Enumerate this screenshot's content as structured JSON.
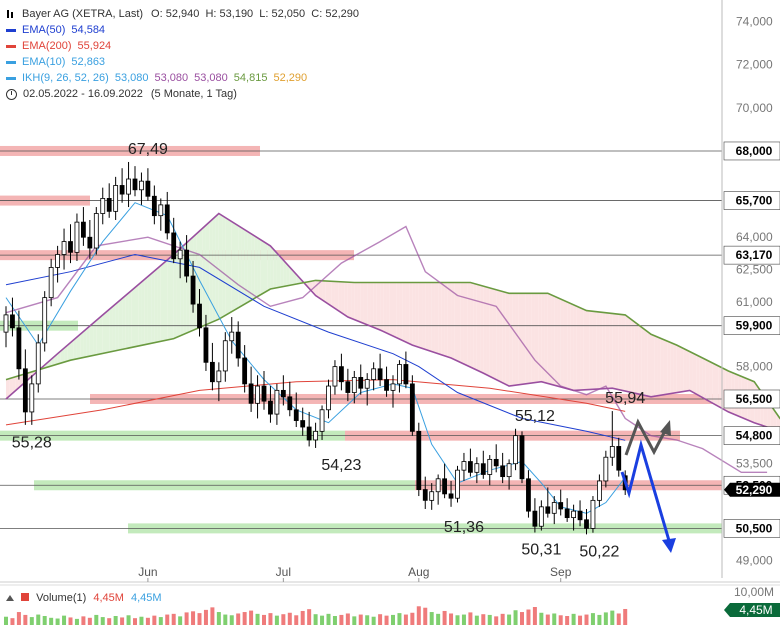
{
  "header": {
    "symbol": "Bayer AG (XETRA, Last)",
    "ohlc": "O: 52,940  H: 53,190  L: 52,050  C: 52,290",
    "period": "02.05.2022 - 16.09.2022",
    "period_note": "(5 Monate, 1 Tag)"
  },
  "indicators": [
    {
      "label": "EMA(50)",
      "value": "54,584",
      "color": "#1f3fd0"
    },
    {
      "label": "EMA(200)",
      "value": "55,924",
      "color": "#e0443a"
    },
    {
      "label": "EMA(10)",
      "value": "52,863",
      "color": "#3aa0e0"
    }
  ],
  "ichimoku": {
    "label": "IKH(9, 26, 52, 26)",
    "values": [
      {
        "v": "53,080",
        "color": "#3aa0e0"
      },
      {
        "v": "53,080",
        "color": "#9a4fa0"
      },
      {
        "v": "53,080",
        "color": "#9a4fa0"
      },
      {
        "v": "54,815",
        "color": "#6a9a40"
      },
      {
        "v": "52,290",
        "color": "#e0a030"
      }
    ]
  },
  "volume": {
    "label": "Volume(1)",
    "value1": "4,45M",
    "value2": "4,45M",
    "axis_top": "10,00M",
    "axis_badge": "4,45M"
  },
  "colors": {
    "up": "#ffffff",
    "down": "#000000",
    "resistance": "#f2a8a8",
    "support": "#b8e6b0",
    "cloud_bull": "#e2f3dc",
    "cloud_bear": "#fbe3e3",
    "arrow_grey": "#555555",
    "arrow_blue": "#1a3fe0"
  },
  "chart_data": {
    "type": "candlestick",
    "ylim": [
      48.2,
      75.0
    ],
    "y_ticks": [
      "74,000",
      "72,000",
      "70,000",
      "64,000",
      "62,500",
      "61,000",
      "58,000",
      "53,500",
      "49,000"
    ],
    "price_levels": [
      {
        "label": "68,000",
        "value": 68.0,
        "zone": "resistance"
      },
      {
        "label": "65,700",
        "value": 65.7,
        "zone": "resistance"
      },
      {
        "label": "63,170",
        "value": 63.17,
        "zone": "resistance"
      },
      {
        "label": "59,900",
        "value": 59.9,
        "zone": "support"
      },
      {
        "label": "56,500",
        "value": 56.5,
        "zone": "resistance"
      },
      {
        "label": "54,800",
        "value": 54.8,
        "zone": "mixed"
      },
      {
        "label": "52,500",
        "value": 52.5,
        "zone": "mixed"
      },
      {
        "label": "50,500",
        "value": 50.5,
        "zone": "support"
      }
    ],
    "current_price": {
      "label": "52,290",
      "value": 52.29
    },
    "x_labels": [
      {
        "label": "Jun",
        "index": 22
      },
      {
        "label": "Jul",
        "index": 43
      },
      {
        "label": "Aug",
        "index": 64
      },
      {
        "label": "Sep",
        "index": 86
      }
    ],
    "annotations": [
      {
        "text": "67,49",
        "index": 22,
        "value": 67.49,
        "pos": "above"
      },
      {
        "text": "55,28",
        "index": 4,
        "value": 55.28,
        "pos": "below"
      },
      {
        "text": "54,23",
        "index": 52,
        "value": 54.23,
        "pos": "below"
      },
      {
        "text": "55,12",
        "index": 82,
        "value": 55.12,
        "pos": "above"
      },
      {
        "text": "55,94",
        "index": 96,
        "value": 55.94,
        "pos": "above"
      },
      {
        "text": "51,36",
        "index": 71,
        "value": 51.36,
        "pos": "below"
      },
      {
        "text": "50,31",
        "index": 83,
        "value": 50.31,
        "pos": "below"
      },
      {
        "text": "50,22",
        "index": 92,
        "value": 50.22,
        "pos": "below"
      }
    ],
    "candles": [
      [
        59.6,
        60.8,
        58.9,
        60.4
      ],
      [
        60.4,
        61.2,
        59.4,
        59.8
      ],
      [
        59.8,
        60.6,
        57.4,
        57.9
      ],
      [
        57.9,
        58.8,
        55.3,
        55.9
      ],
      [
        55.9,
        57.6,
        55.3,
        57.2
      ],
      [
        57.2,
        59.5,
        56.8,
        59.1
      ],
      [
        59.1,
        61.5,
        58.7,
        61.2
      ],
      [
        61.2,
        63.0,
        60.8,
        62.6
      ],
      [
        62.6,
        63.6,
        61.9,
        63.2
      ],
      [
        63.2,
        64.4,
        62.5,
        63.8
      ],
      [
        63.8,
        64.6,
        62.8,
        63.3
      ],
      [
        63.3,
        65.1,
        62.9,
        64.7
      ],
      [
        64.7,
        65.4,
        63.6,
        64.0
      ],
      [
        64.0,
        64.8,
        63.0,
        63.5
      ],
      [
        63.5,
        65.4,
        63.2,
        65.1
      ],
      [
        65.1,
        66.3,
        64.6,
        65.8
      ],
      [
        65.8,
        66.5,
        64.9,
        65.2
      ],
      [
        65.2,
        66.8,
        64.8,
        66.4
      ],
      [
        66.4,
        67.2,
        65.6,
        66.0
      ],
      [
        66.0,
        67.49,
        65.4,
        66.7
      ],
      [
        66.7,
        67.3,
        65.9,
        66.2
      ],
      [
        66.2,
        67.0,
        65.5,
        66.6
      ],
      [
        66.6,
        67.2,
        65.7,
        65.9
      ],
      [
        65.9,
        66.4,
        64.6,
        65.0
      ],
      [
        65.0,
        65.8,
        64.3,
        65.5
      ],
      [
        65.5,
        66.1,
        63.9,
        64.2
      ],
      [
        64.2,
        64.9,
        62.8,
        63.0
      ],
      [
        63.0,
        63.8,
        62.1,
        63.4
      ],
      [
        63.4,
        64.1,
        61.9,
        62.2
      ],
      [
        62.2,
        62.9,
        60.5,
        60.9
      ],
      [
        60.9,
        61.6,
        59.4,
        59.8
      ],
      [
        59.8,
        60.4,
        57.8,
        58.2
      ],
      [
        58.2,
        59.1,
        56.9,
        57.3
      ],
      [
        57.3,
        58.2,
        56.4,
        57.8
      ],
      [
        57.8,
        59.6,
        57.3,
        59.2
      ],
      [
        59.2,
        60.3,
        58.6,
        59.6
      ],
      [
        59.6,
        60.1,
        58.0,
        58.4
      ],
      [
        58.4,
        59.0,
        56.8,
        57.2
      ],
      [
        57.2,
        58.0,
        55.9,
        56.3
      ],
      [
        56.3,
        57.6,
        55.6,
        57.1
      ],
      [
        57.1,
        57.8,
        56.0,
        56.4
      ],
      [
        56.4,
        57.1,
        55.4,
        55.8
      ],
      [
        55.8,
        57.2,
        55.3,
        56.9
      ],
      [
        56.9,
        57.6,
        56.2,
        56.6
      ],
      [
        56.6,
        57.3,
        55.7,
        56.0
      ],
      [
        56.0,
        56.8,
        55.2,
        55.5
      ],
      [
        55.5,
        56.1,
        54.8,
        55.2
      ],
      [
        55.2,
        55.9,
        54.3,
        54.6
      ],
      [
        54.6,
        55.4,
        54.23,
        55.0
      ],
      [
        55.0,
        56.2,
        54.6,
        56.0
      ],
      [
        56.0,
        57.4,
        55.6,
        57.1
      ],
      [
        57.1,
        58.3,
        56.7,
        58.0
      ],
      [
        58.0,
        58.6,
        56.9,
        57.3
      ],
      [
        57.3,
        57.9,
        56.4,
        56.8
      ],
      [
        56.8,
        57.8,
        56.3,
        57.5
      ],
      [
        57.5,
        58.1,
        56.7,
        57.0
      ],
      [
        57.0,
        57.7,
        56.2,
        57.4
      ],
      [
        57.4,
        58.2,
        56.9,
        57.9
      ],
      [
        57.9,
        58.6,
        57.1,
        57.4
      ],
      [
        57.4,
        58.0,
        56.6,
        56.9
      ],
      [
        56.9,
        57.6,
        56.1,
        57.2
      ],
      [
        57.2,
        58.3,
        56.8,
        58.1
      ],
      [
        58.1,
        58.7,
        57.0,
        57.2
      ],
      [
        57.2,
        57.6,
        54.8,
        55.0
      ],
      [
        55.0,
        55.4,
        52.0,
        52.3
      ],
      [
        52.3,
        52.9,
        51.4,
        51.8
      ],
      [
        51.8,
        52.6,
        51.36,
        52.2
      ],
      [
        52.2,
        53.0,
        51.6,
        52.8
      ],
      [
        52.8,
        53.5,
        51.9,
        52.1
      ],
      [
        52.1,
        52.7,
        51.5,
        51.9
      ],
      [
        51.9,
        53.4,
        51.7,
        53.2
      ],
      [
        53.2,
        54.0,
        52.7,
        53.6
      ],
      [
        53.6,
        54.2,
        52.9,
        53.1
      ],
      [
        53.1,
        53.8,
        52.6,
        53.5
      ],
      [
        53.5,
        54.1,
        52.8,
        53.0
      ],
      [
        53.0,
        53.9,
        52.5,
        53.7
      ],
      [
        53.7,
        54.4,
        53.1,
        53.4
      ],
      [
        53.4,
        54.0,
        52.6,
        52.9
      ],
      [
        52.9,
        53.7,
        52.3,
        53.5
      ],
      [
        53.5,
        55.12,
        53.2,
        54.8
      ],
      [
        54.8,
        55.0,
        52.6,
        52.8
      ],
      [
        52.8,
        53.2,
        51.0,
        51.3
      ],
      [
        51.3,
        51.9,
        50.31,
        50.6
      ],
      [
        50.6,
        51.8,
        50.4,
        51.5
      ],
      [
        51.5,
        52.4,
        51.0,
        51.2
      ],
      [
        51.2,
        52.0,
        50.7,
        51.7
      ],
      [
        51.7,
        52.3,
        51.1,
        51.4
      ],
      [
        51.4,
        51.9,
        50.8,
        51.0
      ],
      [
        51.0,
        51.6,
        50.4,
        51.3
      ],
      [
        51.3,
        51.8,
        50.6,
        50.9
      ],
      [
        50.9,
        51.4,
        50.22,
        50.5
      ],
      [
        50.5,
        52.0,
        50.3,
        51.8
      ],
      [
        51.8,
        53.0,
        51.5,
        52.7
      ],
      [
        52.7,
        54.1,
        52.4,
        53.8
      ],
      [
        53.8,
        55.94,
        53.4,
        54.3
      ],
      [
        54.3,
        54.7,
        52.9,
        53.2
      ],
      [
        52.94,
        53.19,
        52.05,
        52.29
      ]
    ],
    "volume_values": [
      2.3,
      1.9,
      3.6,
      2.8,
      2.2,
      2.9,
      2.5,
      2.0,
      1.8,
      2.6,
      2.1,
      1.7,
      2.4,
      2.0,
      2.8,
      2.2,
      1.9,
      2.5,
      2.1,
      2.7,
      1.9,
      2.3,
      2.0,
      2.6,
      2.2,
      2.9,
      3.1,
      2.4,
      3.5,
      3.8,
      3.3,
      4.2,
      4.9,
      3.6,
      2.9,
      2.7,
      3.2,
      3.6,
      4.0,
      3.1,
      2.8,
      3.3,
      2.6,
      3.0,
      3.4,
      2.7,
      3.9,
      4.4,
      3.0,
      2.6,
      3.1,
      2.5,
      2.8,
      3.2,
      2.4,
      2.9,
      2.7,
      2.3,
      3.0,
      2.6,
      2.8,
      3.3,
      2.9,
      3.4,
      5.2,
      4.8,
      3.6,
      3.1,
      3.9,
      3.2,
      2.7,
      2.9,
      3.5,
      2.6,
      3.0,
      2.8,
      2.4,
      3.1,
      2.9,
      4.1,
      3.6,
      4.3,
      5.0,
      3.4,
      2.9,
      3.2,
      2.7,
      2.5,
      3.1,
      2.6,
      2.9,
      3.3,
      2.8,
      3.5,
      4.0,
      3.2,
      4.45
    ],
    "ema50": [
      [
        0,
        61.8
      ],
      [
        10,
        62.4
      ],
      [
        20,
        63.2
      ],
      [
        30,
        62.6
      ],
      [
        40,
        60.8
      ],
      [
        50,
        59.6
      ],
      [
        60,
        58.6
      ],
      [
        64,
        58.0
      ],
      [
        70,
        56.8
      ],
      [
        80,
        55.6
      ],
      [
        90,
        55.0
      ],
      [
        96,
        54.584
      ]
    ],
    "ema200": [
      [
        0,
        55.3
      ],
      [
        15,
        56.0
      ],
      [
        30,
        56.9
      ],
      [
        45,
        57.3
      ],
      [
        60,
        57.4
      ],
      [
        75,
        57.0
      ],
      [
        90,
        56.3
      ],
      [
        96,
        55.924
      ]
    ],
    "ema10": [
      [
        0,
        61.2
      ],
      [
        5,
        59.0
      ],
      [
        10,
        61.5
      ],
      [
        15,
        63.8
      ],
      [
        20,
        65.6
      ],
      [
        25,
        65.0
      ],
      [
        30,
        62.0
      ],
      [
        35,
        59.2
      ],
      [
        40,
        57.4
      ],
      [
        45,
        56.0
      ],
      [
        50,
        55.4
      ],
      [
        55,
        56.8
      ],
      [
        60,
        57.2
      ],
      [
        63,
        57.0
      ],
      [
        66,
        54.4
      ],
      [
        70,
        52.6
      ],
      [
        75,
        53.2
      ],
      [
        80,
        53.6
      ],
      [
        83,
        52.6
      ],
      [
        86,
        51.5
      ],
      [
        90,
        51.2
      ],
      [
        93,
        51.7
      ],
      [
        96,
        52.863
      ]
    ],
    "kijun": [
      [
        0,
        60.5
      ],
      [
        8,
        61.2
      ],
      [
        14,
        63.6
      ],
      [
        22,
        64.0
      ],
      [
        30,
        63.2
      ],
      [
        36,
        61.8
      ],
      [
        41,
        60.8
      ],
      [
        46,
        61.2
      ],
      [
        52,
        62.8
      ],
      [
        58,
        63.8
      ],
      [
        62,
        64.5
      ],
      [
        65,
        62.4
      ],
      [
        70,
        61.3
      ],
      [
        76,
        60.8
      ],
      [
        82,
        58.3
      ],
      [
        86,
        57.1
      ],
      [
        90,
        56.7
      ],
      [
        93,
        57.1
      ],
      [
        96,
        55.6
      ],
      [
        100,
        54.8
      ],
      [
        104,
        54.6
      ],
      [
        108,
        54.2
      ],
      [
        114,
        53.1
      ],
      [
        118,
        53.1
      ]
    ],
    "span_a": [
      [
        0,
        56.5
      ],
      [
        8,
        58.6
      ],
      [
        15,
        60.4
      ],
      [
        26,
        63.2
      ],
      [
        33,
        65.1
      ],
      [
        41,
        63.6
      ],
      [
        48,
        61.3
      ],
      [
        53,
        60.3
      ],
      [
        58,
        59.7
      ],
      [
        63,
        59.0
      ],
      [
        69,
        58.4
      ],
      [
        74,
        57.7
      ],
      [
        78,
        57.1
      ],
      [
        83,
        57.3
      ],
      [
        88,
        56.9
      ],
      [
        94,
        57.0
      ],
      [
        100,
        56.6
      ],
      [
        106,
        56.9
      ],
      [
        112,
        55.9
      ],
      [
        116,
        55.4
      ],
      [
        120,
        55.0
      ],
      [
        123,
        54.8
      ]
    ],
    "span_b": [
      [
        0,
        57.4
      ],
      [
        10,
        58.3
      ],
      [
        18,
        58.8
      ],
      [
        26,
        59.3
      ],
      [
        33,
        60.2
      ],
      [
        41,
        61.6
      ],
      [
        48,
        62.0
      ],
      [
        54,
        61.9
      ],
      [
        60,
        61.9
      ],
      [
        66,
        61.9
      ],
      [
        72,
        61.9
      ],
      [
        78,
        61.4
      ],
      [
        84,
        61.4
      ],
      [
        90,
        60.6
      ],
      [
        96,
        60.4
      ],
      [
        100,
        59.5
      ],
      [
        104,
        59.0
      ],
      [
        108,
        58.4
      ],
      [
        112,
        57.8
      ],
      [
        116,
        57.3
      ],
      [
        120,
        55.6
      ],
      [
        123,
        54.815
      ]
    ]
  }
}
